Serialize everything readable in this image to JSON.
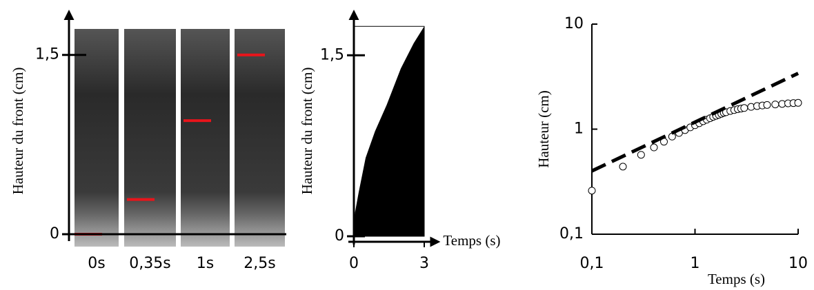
{
  "chart_data": [
    {
      "type": "strip",
      "categories": [
        "0s",
        "0,35s",
        "1s",
        "2,5s"
      ],
      "values": [
        0,
        0.29,
        0.95,
        1.5
      ],
      "color": "#e8141b",
      "y_label": "Hauteur du front (cm)",
      "ylim": [
        0,
        1.85
      ],
      "yticks": [
        0,
        {
          "value": 1.5,
          "label": "1,5"
        }
      ]
    },
    {
      "type": "area",
      "x": [
        0,
        0.05,
        0.2,
        0.5,
        0.9,
        1.4,
        2,
        2.55,
        3
      ],
      "values": [
        0,
        0.2,
        0.36,
        0.65,
        0.87,
        1.09,
        1.39,
        1.6,
        1.74
      ],
      "color": "#000000",
      "y_label": "Hauteur du front (cm)",
      "x_label": "Temps (s)",
      "xlim": [
        0,
        3.6
      ],
      "ylim": [
        0,
        1.85
      ],
      "xticks": [
        0,
        3
      ],
      "yticks": [
        0,
        {
          "value": 1.5,
          "label": "1,5"
        }
      ]
    },
    {
      "type": "scatter",
      "log_scale": true,
      "x_label": "Temps (s)",
      "y_label": "Hauteur (cm)",
      "xlim": [
        0.1,
        10
      ],
      "ylim": [
        0.1,
        10
      ],
      "xticks": [
        {
          "value": 0.1,
          "label": "0,1"
        },
        1,
        10
      ],
      "yticks": [
        {
          "value": 0.1,
          "label": "0,1"
        },
        1,
        10
      ],
      "series": [
        {
          "type": "scatter",
          "color": "#000000",
          "x": [
            0.1,
            0.2,
            0.3,
            0.4,
            0.5,
            0.6,
            0.7,
            0.8,
            0.9,
            1.0,
            1.1,
            1.2,
            1.3,
            1.4,
            1.5,
            1.6,
            1.7,
            1.8,
            1.9,
            2.0,
            2.2,
            2.4,
            2.6,
            2.8,
            3.0,
            3.5,
            4,
            4.5,
            5,
            6,
            7,
            8,
            9,
            10
          ],
          "values": [
            0.26,
            0.44,
            0.57,
            0.67,
            0.76,
            0.85,
            0.92,
            0.98,
            1.04,
            1.09,
            1.14,
            1.19,
            1.23,
            1.27,
            1.31,
            1.34,
            1.37,
            1.4,
            1.43,
            1.45,
            1.49,
            1.52,
            1.55,
            1.57,
            1.59,
            1.63,
            1.66,
            1.68,
            1.7,
            1.72,
            1.74,
            1.76,
            1.77,
            1.78
          ]
        },
        {
          "type": "line",
          "color": "#000000",
          "dash": true,
          "x": [
            0.1,
            10
          ],
          "values": [
            0.4,
            3.4
          ]
        }
      ]
    }
  ]
}
